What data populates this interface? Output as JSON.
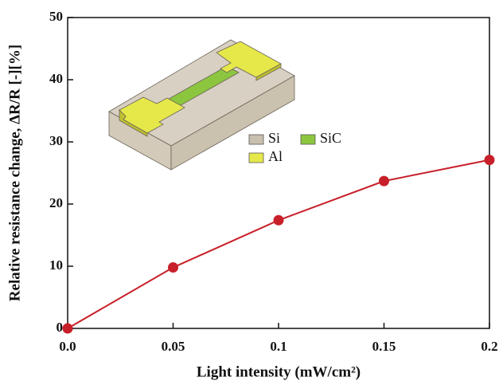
{
  "chart_data": {
    "type": "line",
    "x_label": "Light intensity (mW/cm²)",
    "y_label": "Relative resistance change, ΔR/R [-][%]",
    "x": [
      0,
      0.05,
      0.1,
      0.15,
      0.2
    ],
    "series": [
      {
        "color": "#c8202a",
        "values": [
          0,
          9.8,
          17.4,
          23.7,
          27.1
        ]
      }
    ],
    "xlim": [
      0,
      0.2
    ],
    "ylim": [
      0,
      50
    ],
    "xticks": [
      {
        "value": 0,
        "label": "0.0"
      },
      0.05,
      0.1,
      0.15,
      0.2
    ],
    "yticks": [
      0,
      10,
      20,
      30,
      40,
      50
    ],
    "inset_legend": [
      {
        "name": "Si",
        "color": "#c9bfae"
      },
      {
        "name": "SiC",
        "color": "#8cc63f"
      },
      {
        "name": "Al",
        "color": "#e6e84a"
      }
    ]
  }
}
